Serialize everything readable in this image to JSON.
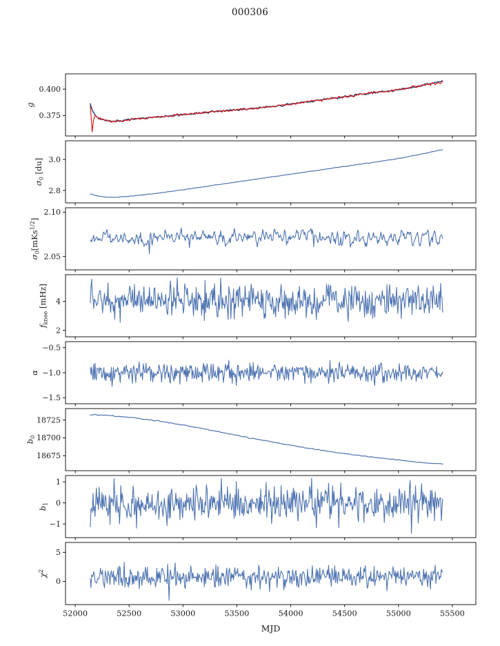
{
  "figure": {
    "title": "000306",
    "xlabel": "MJD"
  },
  "chart_data": {
    "type": "line",
    "title": "000306",
    "xlabel": "MJD",
    "xlim": [
      51910,
      55718
    ],
    "x_data_range": [
      52140,
      55410
    ],
    "x_ticks": [
      52000,
      52500,
      53000,
      53500,
      54000,
      54500,
      55000,
      55500
    ],
    "line_color": "#4c72b0",
    "overlay_color": "#de1414",
    "panels": [
      {
        "key": "g",
        "ylabel_parts": [
          {
            "t": "g",
            "s": "i"
          }
        ],
        "ylim": [
          0.3555,
          0.4145
        ],
        "yticks": [
          {
            "v": 0.375,
            "l": "0.375"
          },
          {
            "v": 0.4,
            "l": "0.400"
          }
        ],
        "series": [
          {
            "name": "gain-fit",
            "color": "#2f4f7d",
            "width": 1.6,
            "noise": 0.0006,
            "smooth": 2,
            "n": 440,
            "trend": [
              [
                52140,
                0.385
              ],
              [
                52170,
                0.377
              ],
              [
                52210,
                0.3728
              ],
              [
                52270,
                0.3703
              ],
              [
                52340,
                0.3696
              ],
              [
                52420,
                0.37
              ],
              [
                52500,
                0.371
              ],
              [
                52600,
                0.372
              ],
              [
                52700,
                0.3729
              ],
              [
                52800,
                0.3737
              ],
              [
                52900,
                0.3747
              ],
              [
                53000,
                0.3758
              ],
              [
                53100,
                0.3767
              ],
              [
                53200,
                0.3777
              ],
              [
                53300,
                0.3787
              ],
              [
                53400,
                0.3796
              ],
              [
                53500,
                0.3804
              ],
              [
                53600,
                0.3812
              ],
              [
                53700,
                0.3822
              ],
              [
                53800,
                0.3833
              ],
              [
                53900,
                0.3845
              ],
              [
                54000,
                0.3858
              ],
              [
                54100,
                0.3872
              ],
              [
                54200,
                0.3886
              ],
              [
                54300,
                0.39
              ],
              [
                54400,
                0.3914
              ],
              [
                54500,
                0.3928
              ],
              [
                54600,
                0.3943
              ],
              [
                54700,
                0.3957
              ],
              [
                54800,
                0.397
              ],
              [
                54900,
                0.3982
              ],
              [
                55000,
                0.3995
              ],
              [
                55100,
                0.401
              ],
              [
                55200,
                0.403
              ],
              [
                55300,
                0.4052
              ],
              [
                55360,
                0.4068
              ],
              [
                55410,
                0.4078
              ]
            ]
          },
          {
            "name": "gain-data",
            "color": "#de1414",
            "width": 1.15,
            "noise": 0.0007,
            "smooth": 2,
            "n": 560,
            "trend": [
              [
                52140,
                0.3848
              ],
              [
                52150,
                0.372
              ],
              [
                52158,
                0.3595
              ],
              [
                52168,
                0.37
              ],
              [
                52180,
                0.3755
              ],
              [
                52210,
                0.3728
              ],
              [
                52270,
                0.3703
              ],
              [
                52340,
                0.3696
              ],
              [
                52420,
                0.37
              ],
              [
                52500,
                0.371
              ],
              [
                52600,
                0.372
              ],
              [
                52700,
                0.3729
              ],
              [
                52800,
                0.3737
              ],
              [
                52900,
                0.3747
              ],
              [
                53000,
                0.3758
              ],
              [
                53100,
                0.3767
              ],
              [
                53200,
                0.3777
              ],
              [
                53300,
                0.3787
              ],
              [
                53400,
                0.3796
              ],
              [
                53500,
                0.3804
              ],
              [
                53600,
                0.3812
              ],
              [
                53700,
                0.3822
              ],
              [
                53800,
                0.3833
              ],
              [
                53900,
                0.3845
              ],
              [
                54000,
                0.3858
              ],
              [
                54100,
                0.3872
              ],
              [
                54200,
                0.3886
              ],
              [
                54300,
                0.39
              ],
              [
                54400,
                0.3914
              ],
              [
                54500,
                0.3928
              ],
              [
                54600,
                0.3943
              ],
              [
                54700,
                0.3957
              ],
              [
                54800,
                0.397
              ],
              [
                54900,
                0.3982
              ],
              [
                55000,
                0.3995
              ],
              [
                55100,
                0.401
              ],
              [
                55200,
                0.403
              ],
              [
                55240,
                0.4038
              ],
              [
                55270,
                0.405
              ],
              [
                55290,
                0.4032
              ],
              [
                55305,
                0.4056
              ],
              [
                55330,
                0.406
              ],
              [
                55350,
                0.4042
              ],
              [
                55365,
                0.4066
              ],
              [
                55385,
                0.4052
              ],
              [
                55410,
                0.4075
              ]
            ]
          }
        ]
      },
      {
        "key": "sigma0-du",
        "ylabel_parts": [
          {
            "t": "σ",
            "s": "i"
          },
          {
            "t": "0",
            "s": "sub"
          },
          {
            "t": " [du]",
            "s": "n"
          }
        ],
        "ylim": [
          2.72,
          3.12
        ],
        "yticks": [
          {
            "v": 2.8,
            "l": "2.8"
          },
          {
            "v": 3.0,
            "l": "3.0"
          }
        ],
        "series": [
          {
            "name": "sigma0-du",
            "color": "#4c72b0",
            "width": 1.2,
            "noise": 0.0012,
            "smooth": 3,
            "n": 480,
            "trend": [
              [
                52140,
                2.778
              ],
              [
                52200,
                2.766
              ],
              [
                52280,
                2.758
              ],
              [
                52360,
                2.756
              ],
              [
                52450,
                2.76
              ],
              [
                52550,
                2.766
              ],
              [
                52650,
                2.773
              ],
              [
                52750,
                2.781
              ],
              [
                52850,
                2.79
              ],
              [
                52950,
                2.8
              ],
              [
                53150,
                2.82
              ],
              [
                53350,
                2.84
              ],
              [
                53550,
                2.86
              ],
              [
                53750,
                2.88
              ],
              [
                53950,
                2.9
              ],
              [
                54150,
                2.92
              ],
              [
                54350,
                2.94
              ],
              [
                54550,
                2.96
              ],
              [
                54750,
                2.98
              ],
              [
                54950,
                3.0
              ],
              [
                55050,
                3.012
              ],
              [
                55150,
                3.026
              ],
              [
                55250,
                3.04
              ],
              [
                55330,
                3.052
              ],
              [
                55410,
                3.064
              ]
            ]
          }
        ]
      },
      {
        "key": "sigma0-mk",
        "ylabel_parts": [
          {
            "t": "σ",
            "s": "i"
          },
          {
            "t": "0",
            "s": "sub"
          },
          {
            "t": "[mKs",
            "s": "n"
          },
          {
            "t": "1/2",
            "s": "sup"
          },
          {
            "t": "]",
            "s": "n"
          }
        ],
        "ylim": [
          2.035,
          2.105
        ],
        "yticks": [
          {
            "v": 2.05,
            "l": "2.05"
          },
          {
            "v": 2.1,
            "l": "2.10"
          }
        ],
        "series": [
          {
            "name": "sigma0-mk",
            "color": "#4c72b0",
            "width": 1.1,
            "noise": 0.008,
            "smooth": 3,
            "n": 520,
            "trend": [
              [
                52140,
                2.071
              ],
              [
                55410,
                2.071
              ]
            ],
            "outliers": [
              [
                52690,
                2.053
              ],
              [
                53060,
                2.06
              ],
              [
                54210,
                2.061
              ]
            ]
          }
        ]
      },
      {
        "key": "fknee",
        "ylabel_parts": [
          {
            "t": "f",
            "s": "i"
          },
          {
            "t": "knee",
            "s": "sub"
          },
          {
            "t": " [mHz]",
            "s": "n"
          }
        ],
        "ylim": [
          1.55,
          5.85
        ],
        "yticks": [
          {
            "v": 2,
            "l": "2"
          },
          {
            "v": 4,
            "l": "4"
          }
        ],
        "series": [
          {
            "name": "fknee",
            "color": "#4c72b0",
            "width": 1.1,
            "noise": 0.55,
            "smooth": 1,
            "n": 520,
            "trend": [
              [
                52140,
                4.1
              ],
              [
                55410,
                4.05
              ]
            ]
          }
        ]
      },
      {
        "key": "alpha",
        "ylabel_parts": [
          {
            "t": "α",
            "s": "i"
          }
        ],
        "ylim": [
          -1.62,
          -0.38
        ],
        "yticks": [
          {
            "v": -0.5,
            "l": "−0.5"
          },
          {
            "v": -1.0,
            "l": "−1.0"
          },
          {
            "v": -1.5,
            "l": "−1.5"
          }
        ],
        "series": [
          {
            "name": "alpha",
            "color": "#4c72b0",
            "width": 1.1,
            "noise": 0.095,
            "smooth": 1,
            "n": 520,
            "trend": [
              [
                52140,
                -1.01
              ],
              [
                55410,
                -1.0
              ]
            ]
          }
        ]
      },
      {
        "key": "b0",
        "ylabel_parts": [
          {
            "t": "b",
            "s": "i"
          },
          {
            "t": "0",
            "s": "sub"
          }
        ],
        "ylim": [
          18654,
          18741
        ],
        "yticks": [
          {
            "v": 18675,
            "l": "18675"
          },
          {
            "v": 18700,
            "l": "18700"
          },
          {
            "v": 18725,
            "l": "18725"
          }
        ],
        "series": [
          {
            "name": "b0",
            "color": "#4c72b0",
            "width": 1.2,
            "noise": 0.45,
            "smooth": 3,
            "n": 480,
            "trend": [
              [
                52140,
                18732.5
              ],
              [
                52300,
                18731.5
              ],
              [
                52450,
                18729.5
              ],
              [
                52600,
                18727
              ],
              [
                52750,
                18724
              ],
              [
                52900,
                18720.5
              ],
              [
                53050,
                18716.5
              ],
              [
                53200,
                18712.5
              ],
              [
                53350,
                18708
              ],
              [
                53500,
                18703.5
              ],
              [
                53650,
                18699
              ],
              [
                53800,
                18695
              ],
              [
                53950,
                18691
              ],
              [
                54100,
                18687
              ],
              [
                54250,
                18683.5
              ],
              [
                54400,
                18680
              ],
              [
                54550,
                18677
              ],
              [
                54700,
                18674
              ],
              [
                54850,
                18671.5
              ],
              [
                55000,
                18669
              ],
              [
                55150,
                18666.5
              ],
              [
                55280,
                18664.5
              ],
              [
                55410,
                18663.5
              ]
            ]
          }
        ]
      },
      {
        "key": "b1",
        "ylabel_parts": [
          {
            "t": "b",
            "s": "i"
          },
          {
            "t": "1",
            "s": "sub"
          }
        ],
        "ylim": [
          -1.65,
          1.3
        ],
        "yticks": [
          {
            "v": -1,
            "l": "−1"
          },
          {
            "v": 0,
            "l": "0"
          },
          {
            "v": 1,
            "l": "1"
          }
        ],
        "series": [
          {
            "name": "b1",
            "color": "#4c72b0",
            "width": 1.1,
            "noise": 0.42,
            "smooth": 1,
            "n": 520,
            "trend": [
              [
                52140,
                -0.02
              ],
              [
                55410,
                0.0
              ]
            ],
            "outliers": [
              [
                55120,
                -1.45
              ]
            ]
          }
        ]
      },
      {
        "key": "chi2",
        "ylabel_parts": [
          {
            "t": "χ",
            "s": "i"
          },
          {
            "t": "2",
            "s": "sup"
          }
        ],
        "ylim": [
          -4.0,
          6.7
        ],
        "yticks": [
          {
            "v": 0,
            "l": "0"
          },
          {
            "v": 5,
            "l": "5"
          }
        ],
        "series": [
          {
            "name": "chi2",
            "color": "#4c72b0",
            "width": 1.1,
            "noise": 0.95,
            "smooth": 1,
            "n": 520,
            "trend": [
              [
                52140,
                0.6
              ],
              [
                55410,
                0.9
              ]
            ],
            "outliers": [
              [
                52870,
                -3.3
              ]
            ]
          }
        ]
      }
    ]
  }
}
